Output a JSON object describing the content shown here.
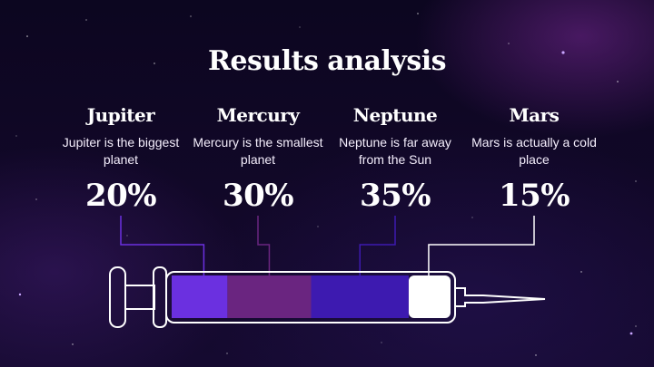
{
  "title": "Results analysis",
  "items": [
    {
      "name": "Jupiter",
      "description": "Jupiter is the biggest planet",
      "percent_label": "20%",
      "value": 20,
      "color": "#6b30e0"
    },
    {
      "name": "Mercury",
      "description": "Mercury is the smallest planet",
      "percent_label": "30%",
      "value": 30,
      "color": "#6a2580"
    },
    {
      "name": "Neptune",
      "description": "Neptune is far away from the Sun",
      "percent_label": "35%",
      "value": 35,
      "color": "#3d1ab0"
    },
    {
      "name": "Mars",
      "description": "Mars is actually a cold place",
      "percent_label": "15%",
      "value": 15,
      "color": "#ffffff"
    }
  ],
  "colors": {
    "background": "#0d0620",
    "outline": "#ffffff"
  }
}
